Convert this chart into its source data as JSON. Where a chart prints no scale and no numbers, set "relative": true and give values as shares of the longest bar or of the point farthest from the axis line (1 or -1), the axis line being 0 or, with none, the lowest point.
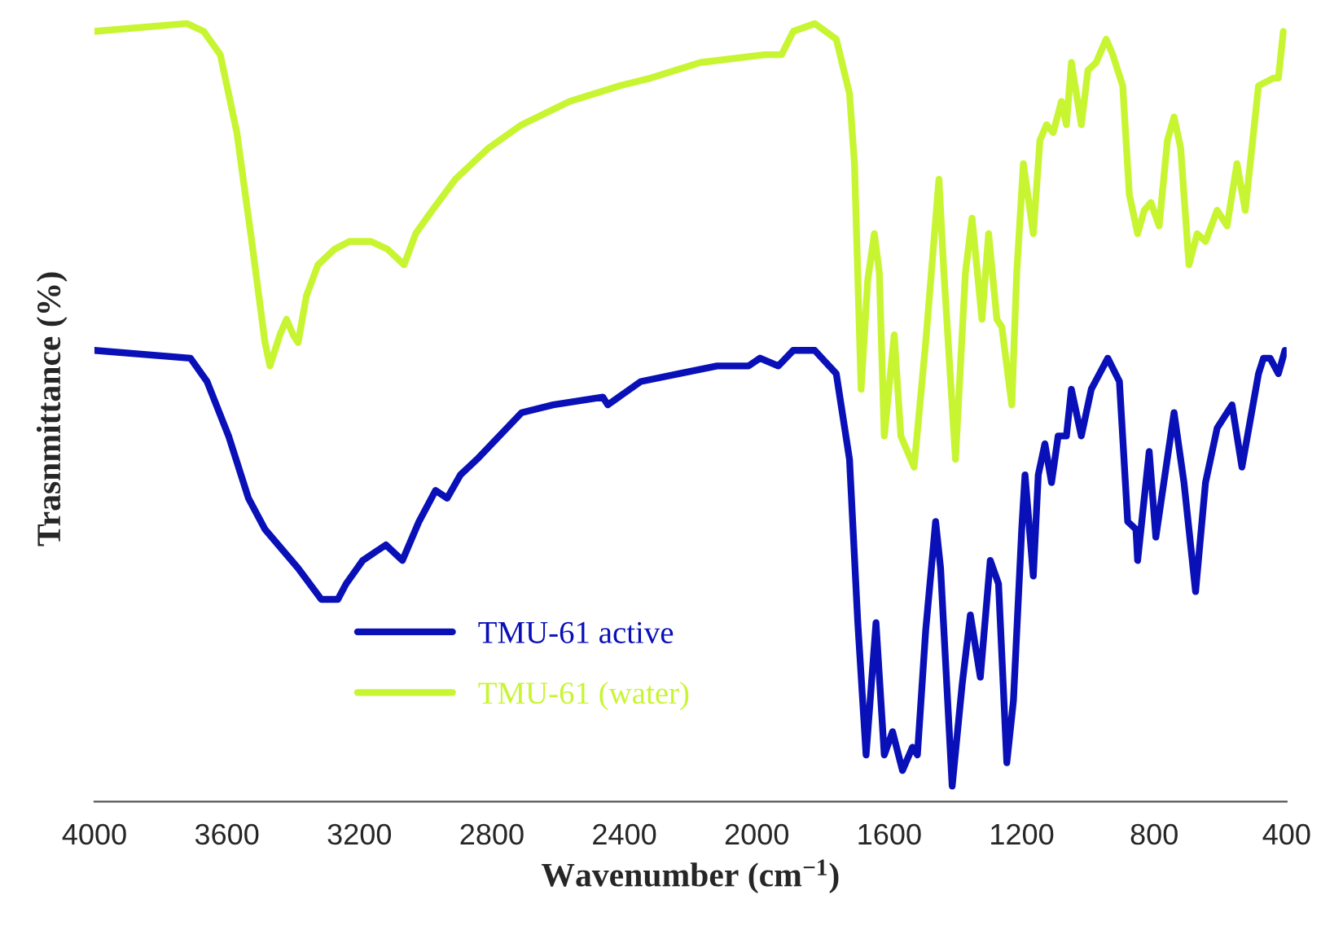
{
  "chart_data": {
    "type": "line",
    "relative": true,
    "xlabel": "Wavenumber (cm$^{−1}$)",
    "ylabel": "Trasnmittance (%)",
    "xlim": [
      4000,
      400
    ],
    "xticks": [
      4000,
      3600,
      3200,
      2800,
      2400,
      2000,
      1600,
      1200,
      800,
      400
    ],
    "tick_labels": "x",
    "legend": "bottom",
    "grid": false,
    "marker": "none",
    "line_style": "solid",
    "series": [
      {
        "name": "TMU-61 active",
        "color": "#0a10b8",
        "x": [
          4000,
          3710,
          3660,
          3595,
          3535,
          3485,
          3385,
          3315,
          3265,
          3240,
          3190,
          3155,
          3120,
          3070,
          3020,
          2970,
          2935,
          2895,
          2845,
          2710,
          2615,
          2465,
          2450,
          2350,
          2235,
          2120,
          2025,
          1990,
          1935,
          1890,
          1825,
          1760,
          1720,
          1695,
          1670,
          1640,
          1615,
          1590,
          1560,
          1530,
          1515,
          1490,
          1460,
          1445,
          1410,
          1380,
          1355,
          1325,
          1295,
          1270,
          1245,
          1225,
          1200,
          1190,
          1165,
          1150,
          1130,
          1110,
          1090,
          1065,
          1050,
          1020,
          990,
          940,
          905,
          880,
          855,
          850,
          815,
          795,
          740,
          710,
          675,
          645,
          610,
          565,
          535,
          485,
          470,
          450,
          425,
          405
        ],
        "values": [
          0.58,
          0.57,
          0.54,
          0.47,
          0.39,
          0.35,
          0.3,
          0.26,
          0.26,
          0.28,
          0.31,
          0.32,
          0.33,
          0.31,
          0.36,
          0.4,
          0.39,
          0.42,
          0.44,
          0.5,
          0.51,
          0.52,
          0.51,
          0.54,
          0.55,
          0.56,
          0.56,
          0.57,
          0.56,
          0.58,
          0.58,
          0.55,
          0.44,
          0.23,
          0.06,
          0.23,
          0.06,
          0.09,
          0.04,
          0.07,
          0.06,
          0.22,
          0.36,
          0.3,
          0.02,
          0.15,
          0.24,
          0.16,
          0.31,
          0.28,
          0.05,
          0.13,
          0.35,
          0.42,
          0.29,
          0.42,
          0.46,
          0.41,
          0.47,
          0.47,
          0.53,
          0.47,
          0.53,
          0.57,
          0.54,
          0.36,
          0.35,
          0.31,
          0.45,
          0.34,
          0.5,
          0.41,
          0.27,
          0.41,
          0.48,
          0.51,
          0.43,
          0.55,
          0.57,
          0.57,
          0.55,
          0.58
        ]
      },
      {
        "name": "TMU-61 (water)",
        "color": "#c8f532",
        "x": [
          4000,
          3720,
          3670,
          3620,
          3570,
          3525,
          3485,
          3470,
          3440,
          3420,
          3400,
          3385,
          3360,
          3325,
          3275,
          3230,
          3165,
          3115,
          3065,
          3030,
          2980,
          2910,
          2810,
          2710,
          2565,
          2415,
          2320,
          2170,
          1975,
          1925,
          1890,
          1825,
          1760,
          1720,
          1705,
          1685,
          1665,
          1645,
          1630,
          1615,
          1585,
          1565,
          1525,
          1490,
          1450,
          1435,
          1400,
          1370,
          1350,
          1320,
          1300,
          1275,
          1260,
          1230,
          1215,
          1195,
          1165,
          1145,
          1125,
          1105,
          1080,
          1065,
          1050,
          1020,
          1000,
          975,
          945,
          925,
          895,
          875,
          850,
          830,
          810,
          785,
          760,
          740,
          720,
          695,
          670,
          645,
          610,
          580,
          550,
          525,
          485,
          440,
          425,
          410
        ],
        "values": [
          0.99,
          1.0,
          0.99,
          0.96,
          0.86,
          0.72,
          0.59,
          0.56,
          0.6,
          0.62,
          0.6,
          0.59,
          0.65,
          0.69,
          0.71,
          0.72,
          0.72,
          0.71,
          0.69,
          0.73,
          0.76,
          0.8,
          0.84,
          0.87,
          0.9,
          0.92,
          0.93,
          0.95,
          0.96,
          0.96,
          0.99,
          1.0,
          0.98,
          0.91,
          0.82,
          0.53,
          0.67,
          0.73,
          0.68,
          0.47,
          0.6,
          0.47,
          0.43,
          0.59,
          0.8,
          0.68,
          0.44,
          0.68,
          0.75,
          0.62,
          0.73,
          0.62,
          0.61,
          0.51,
          0.68,
          0.82,
          0.73,
          0.85,
          0.87,
          0.86,
          0.9,
          0.87,
          0.95,
          0.87,
          0.94,
          0.95,
          0.98,
          0.96,
          0.92,
          0.78,
          0.73,
          0.76,
          0.77,
          0.74,
          0.85,
          0.88,
          0.84,
          0.69,
          0.73,
          0.72,
          0.76,
          0.74,
          0.82,
          0.76,
          0.92,
          0.93,
          0.93,
          0.99
        ]
      }
    ]
  }
}
